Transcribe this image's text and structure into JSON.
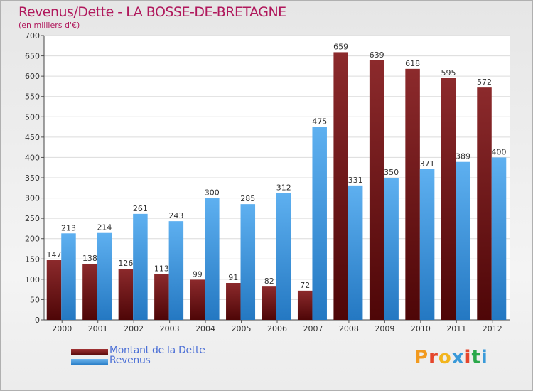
{
  "title": "Revenus/Dette - LA BOSSE-DE-BRETAGNE",
  "subtitle": "(en milliers d'€)",
  "logo": "Proxiti",
  "colors": {
    "dette": "#7a1416",
    "revenus": "#3d97e2",
    "title": "#b0185c",
    "legend_text": "#4b6fd6"
  },
  "chart_data": {
    "type": "bar",
    "title": "Revenus/Dette - LA BOSSE-DE-BRETAGNE",
    "ylabel": "(en milliers d'€)",
    "categories": [
      "2000",
      "2001",
      "2002",
      "2003",
      "2004",
      "2005",
      "2006",
      "2007",
      "2008",
      "2009",
      "2010",
      "2011",
      "2012"
    ],
    "series": [
      {
        "name": "Montant de la Dette",
        "color": "#7a1416",
        "values": [
          147,
          138,
          126,
          113,
          99,
          91,
          82,
          72,
          659,
          639,
          618,
          595,
          572
        ]
      },
      {
        "name": "Revenus",
        "color": "#3d97e2",
        "values": [
          213,
          214,
          261,
          243,
          300,
          285,
          312,
          475,
          331,
          350,
          371,
          389,
          400
        ]
      }
    ],
    "ylim": [
      0,
      700
    ],
    "yticks": [
      0,
      50,
      100,
      150,
      200,
      250,
      300,
      350,
      400,
      450,
      500,
      550,
      600,
      650,
      700
    ],
    "grid": true,
    "legend": "bottom-left"
  }
}
